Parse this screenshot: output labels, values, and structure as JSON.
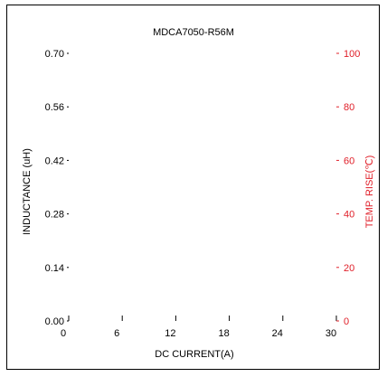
{
  "chart_data": {
    "type": "line",
    "title": "MDCA7050-R56M",
    "xlabel": "DC CURRENT(A)",
    "ylabel": "INDUCTANCE (uH)",
    "y2label": "TEMP. RISE(℃)",
    "xlim": [
      0,
      30
    ],
    "ylim": [
      0.0,
      0.7
    ],
    "y2lim": [
      0,
      100
    ],
    "x_ticks": [
      "0",
      "6",
      "12",
      "18",
      "24",
      "30"
    ],
    "y_ticks": [
      "0.00",
      "0.14",
      "0.28",
      "0.42",
      "0.56",
      "0.70"
    ],
    "y2_ticks": [
      "0",
      "20",
      "40",
      "60",
      "80",
      "100"
    ],
    "grid": false,
    "series": [],
    "colors": {
      "left_axis": "#000000",
      "right_axis": "#e0202a"
    }
  }
}
